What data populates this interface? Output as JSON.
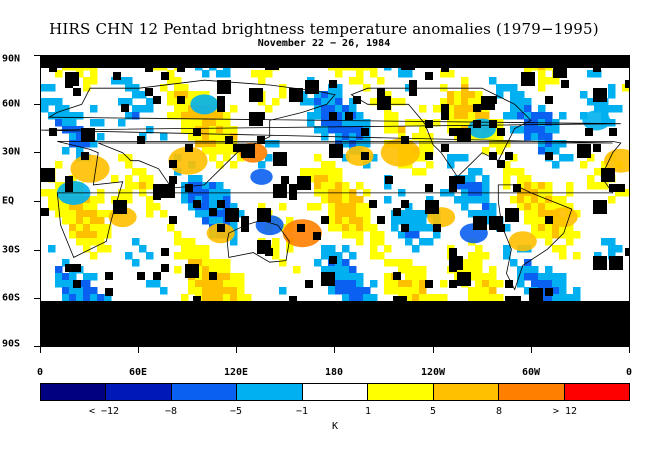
{
  "title": "HIRS CHN 12 Pentad brightness temperature anomalies (1979−1995)",
  "subtitle": "November 22 − 26, 1984",
  "map": {
    "lat_labels": [
      "90N",
      "60N",
      "30N",
      "EQ",
      "30S",
      "60S",
      "90S"
    ],
    "lon_labels": [
      "0",
      "60E",
      "120E",
      "180",
      "120W",
      "60W",
      "0"
    ],
    "missing_color": "#000000"
  },
  "colorbar": {
    "colors": [
      "#000080",
      "#0018b8",
      "#0a60f0",
      "#00b0f0",
      "#ffffff",
      "#ffff00",
      "#ffc000",
      "#ff8000",
      "#ff0000"
    ],
    "labels": [
      "< −12",
      "−8",
      "−5",
      "−1",
      "1",
      "5",
      "8",
      "> 12"
    ],
    "units": "K"
  },
  "anomaly_patches": [
    {
      "lon": 30,
      "lat": 20,
      "level": 6,
      "r": 14
    },
    {
      "lon": 90,
      "lat": 25,
      "level": 6,
      "r": 14
    },
    {
      "lon": 130,
      "lat": 30,
      "level": 7,
      "r": 10
    },
    {
      "lon": 160,
      "lat": -20,
      "level": 7,
      "r": 14
    },
    {
      "lon": 195,
      "lat": 28,
      "level": 6,
      "r": 10
    },
    {
      "lon": 220,
      "lat": 30,
      "level": 6,
      "r": 14
    },
    {
      "lon": 295,
      "lat": -25,
      "level": 6,
      "r": 10
    },
    {
      "lon": 320,
      "lat": -10,
      "level": 6,
      "r": 10
    },
    {
      "lon": 355,
      "lat": 25,
      "level": 6,
      "r": 12
    },
    {
      "lon": 50,
      "lat": -10,
      "level": 6,
      "r": 10
    },
    {
      "lon": 110,
      "lat": -20,
      "level": 6,
      "r": 10
    },
    {
      "lon": 245,
      "lat": -10,
      "level": 6,
      "r": 10
    },
    {
      "lon": 135,
      "lat": 15,
      "level": 2,
      "r": 8
    },
    {
      "lon": 140,
      "lat": -15,
      "level": 2,
      "r": 10
    },
    {
      "lon": 265,
      "lat": -20,
      "level": 2,
      "r": 10
    },
    {
      "lon": 100,
      "lat": 60,
      "level": 3,
      "r": 10
    },
    {
      "lon": 20,
      "lat": 5,
      "level": 3,
      "r": 12
    },
    {
      "lon": 340,
      "lat": 50,
      "level": 3,
      "r": 10
    },
    {
      "lon": 270,
      "lat": 45,
      "level": 3,
      "r": 10
    }
  ]
}
